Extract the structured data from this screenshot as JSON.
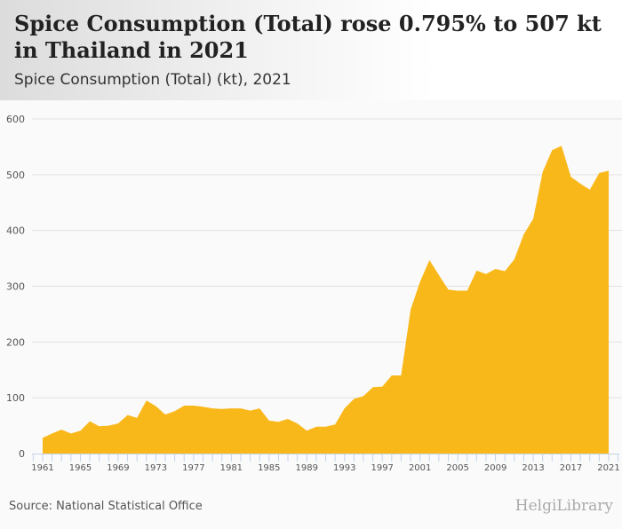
{
  "header": {
    "title": "Spice Consumption (Total) rose 0.795% to 507 kt in Thailand in 2021",
    "subtitle": "Spice Consumption (Total) (kt), 2021"
  },
  "footer": {
    "source": "Source: National Statistical Office",
    "logo": "HelgiLibrary"
  },
  "chart_data": {
    "type": "area",
    "title": "Spice Consumption (Total) (kt), 2021",
    "xlabel": "",
    "ylabel": "kt",
    "ylim": [
      0,
      600
    ],
    "yticks": [
      "0",
      "100",
      "200",
      "300",
      "400",
      "500",
      "600"
    ],
    "xticks": [
      "1961",
      "1965",
      "1969",
      "1973",
      "1977",
      "1981",
      "1985",
      "1989",
      "1993",
      "1997",
      "2001",
      "2005",
      "2009",
      "2013",
      "2017",
      "2021"
    ],
    "color": "#f9b81a",
    "x": [
      1961,
      1962,
      1963,
      1964,
      1965,
      1966,
      1967,
      1968,
      1969,
      1970,
      1971,
      1972,
      1973,
      1974,
      1975,
      1976,
      1977,
      1978,
      1979,
      1980,
      1981,
      1982,
      1983,
      1984,
      1985,
      1986,
      1987,
      1988,
      1989,
      1990,
      1991,
      1992,
      1993,
      1994,
      1995,
      1996,
      1997,
      1998,
      1999,
      2000,
      2001,
      2002,
      2003,
      2004,
      2005,
      2006,
      2007,
      2008,
      2009,
      2010,
      2011,
      2012,
      2013,
      2014,
      2015,
      2016,
      2017,
      2018,
      2019,
      2020,
      2021
    ],
    "values": [
      28,
      36,
      43,
      36,
      41,
      58,
      49,
      50,
      54,
      69,
      64,
      95,
      85,
      70,
      76,
      86,
      86,
      84,
      81,
      80,
      81,
      81,
      77,
      81,
      59,
      57,
      62,
      54,
      41,
      48,
      48,
      52,
      81,
      98,
      103,
      119,
      120,
      140,
      140,
      258,
      308,
      347,
      320,
      294,
      292,
      292,
      328,
      322,
      331,
      327,
      348,
      393,
      421,
      505,
      544,
      552,
      496,
      484,
      473,
      503,
      507
    ]
  }
}
